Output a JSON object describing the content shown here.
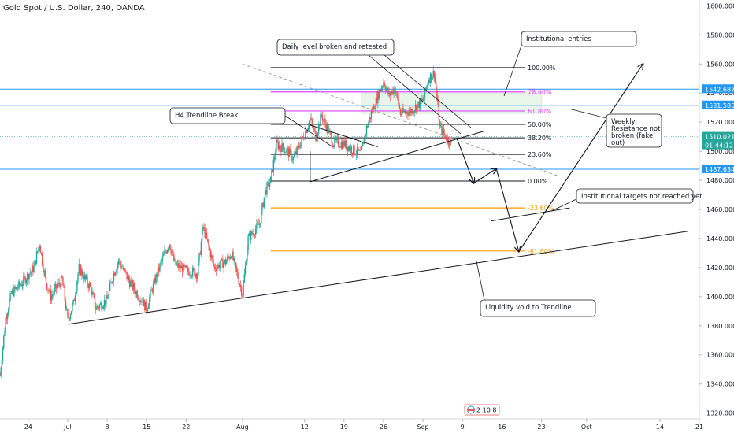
{
  "header": {
    "title": "Gold Spot / U.S. Dollar, 240, OANDA"
  },
  "chart_data": {
    "type": "candlestick",
    "symbol": "Gold Spot / U.S. Dollar",
    "interval": "240",
    "source": "OANDA",
    "ylim": [
      1316,
      1604
    ],
    "y_ticks": [
      1320,
      1340,
      1360,
      1380,
      1400,
      1420,
      1440,
      1460,
      1480,
      1500,
      1520,
      1540,
      1560,
      1580,
      1600
    ],
    "y_tick_labels": [
      "1320.000",
      "1340.000",
      "1360.000",
      "1380.000",
      "1400.000",
      "1420.000",
      "1440.000",
      "1460.000",
      "1480.000",
      "1500.000",
      "1520.000",
      "1540.000",
      "1560.000",
      "1580.000",
      "1600.000"
    ],
    "x_range": [
      "2019-06-19",
      "2019-10-21"
    ],
    "x_ticks": [
      {
        "label": "24",
        "date": "2019-06-24"
      },
      {
        "label": "Jul",
        "date": "2019-07-01"
      },
      {
        "label": "8",
        "date": "2019-07-08"
      },
      {
        "label": "15",
        "date": "2019-07-15"
      },
      {
        "label": "22",
        "date": "2019-07-22"
      },
      {
        "label": "Aug",
        "date": "2019-08-01"
      },
      {
        "label": "12",
        "date": "2019-08-12"
      },
      {
        "label": "19",
        "date": "2019-08-19"
      },
      {
        "label": "26",
        "date": "2019-08-26"
      },
      {
        "label": "Sep",
        "date": "2019-09-02"
      },
      {
        "label": "9",
        "date": "2019-09-09"
      },
      {
        "label": "16",
        "date": "2019-09-16"
      },
      {
        "label": "23",
        "date": "2019-09-23"
      },
      {
        "label": "Oct",
        "date": "2019-10-01"
      },
      {
        "label": "14",
        "date": "2019-10-14"
      },
      {
        "label": "21",
        "date": "2019-10-21"
      }
    ],
    "close_path": [
      [
        "2019-06-19",
        1346
      ],
      [
        "2019-06-20",
        1385
      ],
      [
        "2019-06-21",
        1402
      ],
      [
        "2019-06-23",
        1410
      ],
      [
        "2019-06-25",
        1420
      ],
      [
        "2019-06-26",
        1437
      ],
      [
        "2019-06-27",
        1412
      ],
      [
        "2019-06-28",
        1400
      ],
      [
        "2019-06-30",
        1412
      ],
      [
        "2019-07-01",
        1384
      ],
      [
        "2019-07-02",
        1395
      ],
      [
        "2019-07-03",
        1420
      ],
      [
        "2019-07-05",
        1406
      ],
      [
        "2019-07-06",
        1392
      ],
      [
        "2019-07-08",
        1398
      ],
      [
        "2019-07-09",
        1414
      ],
      [
        "2019-07-10",
        1425
      ],
      [
        "2019-07-12",
        1410
      ],
      [
        "2019-07-15",
        1392
      ],
      [
        "2019-07-16",
        1406
      ],
      [
        "2019-07-18",
        1428
      ],
      [
        "2019-07-19",
        1437
      ],
      [
        "2019-07-20",
        1422
      ],
      [
        "2019-07-22",
        1418
      ],
      [
        "2019-07-24",
        1416
      ],
      [
        "2019-07-25",
        1448
      ],
      [
        "2019-07-27",
        1420
      ],
      [
        "2019-07-29",
        1424
      ],
      [
        "2019-07-30",
        1430
      ],
      [
        "2019-08-01",
        1402
      ],
      [
        "2019-08-02",
        1440
      ],
      [
        "2019-08-04",
        1450
      ],
      [
        "2019-08-05",
        1472
      ],
      [
        "2019-08-06",
        1480
      ],
      [
        "2019-08-07",
        1505
      ],
      [
        "2019-08-09",
        1500
      ],
      [
        "2019-08-10",
        1495
      ],
      [
        "2019-08-12",
        1512
      ],
      [
        "2019-08-13",
        1522
      ],
      [
        "2019-08-14",
        1510
      ],
      [
        "2019-08-15",
        1525
      ],
      [
        "2019-08-16",
        1516
      ],
      [
        "2019-08-17",
        1506
      ],
      [
        "2019-08-19",
        1505
      ],
      [
        "2019-08-21",
        1500
      ],
      [
        "2019-08-22",
        1498
      ],
      [
        "2019-08-23",
        1516
      ],
      [
        "2019-08-24",
        1528
      ],
      [
        "2019-08-26",
        1548
      ],
      [
        "2019-08-27",
        1538
      ],
      [
        "2019-08-28",
        1544
      ],
      [
        "2019-08-29",
        1526
      ],
      [
        "2019-08-31",
        1528
      ],
      [
        "2019-09-02",
        1535
      ],
      [
        "2019-09-03",
        1550
      ],
      [
        "2019-09-04",
        1554
      ],
      [
        "2019-09-05",
        1516
      ],
      [
        "2019-09-06",
        1510
      ],
      [
        "2019-09-07",
        1505
      ]
    ],
    "horizontal_levels": [
      {
        "value": 1542.687,
        "label": "1542.687",
        "color": "#2196F3"
      },
      {
        "value": 1531.585,
        "label": "1531.585",
        "color": "#2196F3"
      },
      {
        "value": 1487.634,
        "label": "1487.634",
        "color": "#2196F3"
      }
    ],
    "current_price": {
      "value": 1510.021,
      "label": "1510.021",
      "countdown": "01:44:12",
      "color": "#26A69A"
    },
    "fib_levels": [
      {
        "label": "100.00%",
        "value": 1557.5,
        "color": "#131722"
      },
      {
        "label": "78.60%",
        "value": 1540.8,
        "color": "#E040FB"
      },
      {
        "label": "61.80%",
        "value": 1527.7,
        "color": "#E040FB"
      },
      {
        "label": "50.00%",
        "value": 1518.5,
        "color": "#131722"
      },
      {
        "label": "38.20%",
        "value": 1509.2,
        "color": "#131722"
      },
      {
        "label": "23.60%",
        "value": 1497.8,
        "color": "#131722"
      },
      {
        "label": "0.00%",
        "value": 1479.5,
        "color": "#131722"
      },
      {
        "label": "-23.60%",
        "value": 1461.0,
        "color": "#FF9800"
      },
      {
        "label": "-61.80%",
        "value": 1431.4,
        "color": "#FF9800"
      }
    ],
    "fib_start": "2019-08-06",
    "fib_end": "2019-09-20",
    "zones": [
      {
        "x0": "2019-08-22",
        "x1": "2019-09-23",
        "y0": 1526,
        "y1": 1540,
        "color": "#E8F5E9"
      }
    ],
    "trendlines": [
      {
        "points": [
          [
            "2019-07-01",
            1381
          ],
          [
            "2019-10-19",
            1445
          ]
        ],
        "color": "#131722",
        "dashed": false
      },
      {
        "points": [
          [
            "2019-08-13",
            1479
          ],
          [
            "2019-09-13",
            1514
          ]
        ],
        "color": "#131722",
        "dashed": false
      },
      {
        "points": [
          [
            "2019-08-01",
            1560
          ],
          [
            "2019-09-26",
            1483
          ]
        ],
        "color": "#9E9E9E",
        "dashed": true
      },
      {
        "points": [
          [
            "2019-08-13",
            1518
          ],
          [
            "2019-08-25",
            1503
          ]
        ],
        "color": "#131722",
        "dashed": false
      },
      {
        "points": [
          [
            "2019-09-14",
            1452
          ],
          [
            "2019-09-28",
            1461
          ]
        ],
        "color": "#131722",
        "dashed": false
      },
      {
        "points": [
          [
            "2019-08-13",
            1479
          ],
          [
            "2019-08-13",
            1500
          ]
        ],
        "color": "#131722",
        "dashed": false
      }
    ],
    "arrows": [
      {
        "from": [
          "2019-09-08",
          1509
        ],
        "to": [
          "2019-09-11",
          1478
        ]
      },
      {
        "from": [
          "2019-09-11",
          1478
        ],
        "to": [
          "2019-09-15",
          1488
        ]
      },
      {
        "from": [
          "2019-09-15",
          1488
        ],
        "to": [
          "2019-09-19",
          1431
        ]
      },
      {
        "from": [
          "2019-09-19",
          1431
        ],
        "to": [
          "2019-10-11",
          1560
        ]
      }
    ],
    "annotations": [
      {
        "id": "daily-level",
        "text": "Daily level broken and retested"
      },
      {
        "id": "institutional-entries",
        "text": "Institutional entries"
      },
      {
        "id": "h4-trendline",
        "text": "H4 Trendline Break"
      },
      {
        "id": "weekly-resistance",
        "text": "Weekly Resistance not broken (fake out)"
      },
      {
        "id": "institutional-targets",
        "text": "Institutional targets not reached yet"
      },
      {
        "id": "liquidity-void",
        "text": "Liquidity void to Trendline"
      }
    ],
    "colors": {
      "up": "#26A69A",
      "down": "#EF5350",
      "level": "#2196F3",
      "fib": "#131722",
      "fib_magenta": "#E040FB",
      "fib_orange": "#FF9800"
    },
    "grid": false
  },
  "events_badge": {
    "label": "2 10 8"
  }
}
